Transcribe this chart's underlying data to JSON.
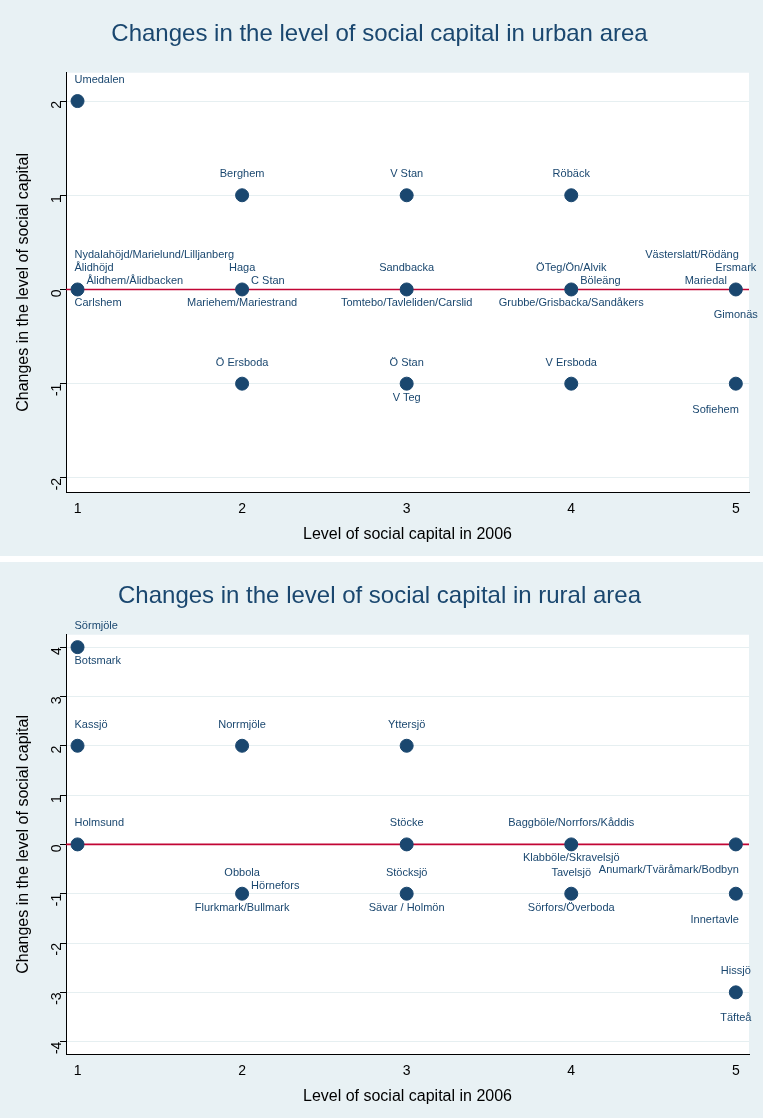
{
  "chart_data": [
    {
      "type": "scatter",
      "title": "Changes in the level of social capital in urban area",
      "xlabel": "Level of social capital in 2006",
      "ylabel": "Changes in the level of social capital",
      "series": [
        {
          "color": "#1a476f",
          "x": [
            1,
            2,
            3,
            4,
            1,
            2,
            3,
            4,
            5,
            2,
            3,
            4,
            5
          ],
          "values": [
            2,
            1,
            1,
            1,
            0,
            0,
            0,
            0,
            0,
            -1,
            -1,
            -1,
            -1
          ]
        }
      ],
      "xlim": [
        0.93,
        5.08
      ],
      "xticks": [
        1,
        2,
        3,
        4,
        5
      ],
      "ylim": [
        -2.15,
        2.3
      ],
      "yticks": [
        -2,
        -1,
        0,
        1,
        2
      ],
      "grid": "y",
      "legend": false,
      "marker": "circle",
      "ref_lines": [
        {
          "axis": "y",
          "value": 0,
          "color": "#c10534"
        }
      ],
      "annotations": [
        {
          "text": "Umedalen",
          "x": 1,
          "y": 2
        },
        {
          "text": "Berghem",
          "x": 2,
          "y": 1
        },
        {
          "text": "V Stan",
          "x": 3,
          "y": 1
        },
        {
          "text": "Röbäck",
          "x": 4,
          "y": 1
        },
        {
          "text": "Ålidhöjd",
          "x": 1,
          "y": 0
        },
        {
          "text": "Carlshem",
          "x": 1,
          "y": 0
        },
        {
          "text": "Ålidhem/Ålidbacken",
          "x": 1,
          "y": 0
        },
        {
          "text": "Nydalahöjd/Marielund/Lilljanberg",
          "x": 1,
          "y": 0
        },
        {
          "text": "Haga",
          "x": 2,
          "y": 0
        },
        {
          "text": "Mariehem/Mariestrand",
          "x": 2,
          "y": 0
        },
        {
          "text": "C Stan",
          "x": 2,
          "y": 0
        },
        {
          "text": "Sandbacka",
          "x": 3,
          "y": 0
        },
        {
          "text": "Tomtebo/Tavleliden/Carslid",
          "x": 3,
          "y": 0
        },
        {
          "text": "ÖTeg/Ön/Alvik",
          "x": 4,
          "y": 0
        },
        {
          "text": "Grubbe/Grisbacka/Sandåkers",
          "x": 4,
          "y": 0
        },
        {
          "text": "Böleäng",
          "x": 4,
          "y": 0
        },
        {
          "text": "Gimonäs",
          "x": 5,
          "y": 0
        },
        {
          "text": "Ersmark",
          "x": 5,
          "y": 0
        },
        {
          "text": "Mariedal",
          "x": 5,
          "y": 0
        },
        {
          "text": "Västerslatt/Rödäng",
          "x": 5,
          "y": 0
        },
        {
          "text": "Ö Ersboda",
          "x": 2,
          "y": -1
        },
        {
          "text": "Ö Stan",
          "x": 3,
          "y": -1
        },
        {
          "text": "V Teg",
          "x": 3,
          "y": -1
        },
        {
          "text": "V Ersboda",
          "x": 4,
          "y": -1
        },
        {
          "text": "Sofiehem",
          "x": 5,
          "y": -1
        }
      ]
    },
    {
      "type": "scatter",
      "title": "Changes in the level of social capital in rural area",
      "xlabel": "Level of social capital in 2006",
      "ylabel": "Changes in the level of social capital",
      "series": [
        {
          "color": "#1a476f",
          "x": [
            1,
            1,
            2,
            3,
            1,
            3,
            4,
            5,
            2,
            3,
            4,
            5,
            5
          ],
          "values": [
            4,
            2,
            2,
            2,
            0,
            0,
            0,
            0,
            -1,
            -1,
            -1,
            -1,
            -3
          ]
        }
      ],
      "xlim": [
        0.93,
        5.08
      ],
      "xticks": [
        1,
        2,
        3,
        4,
        5
      ],
      "ylim": [
        -4.25,
        4.25
      ],
      "yticks": [
        -4,
        -3,
        -2,
        -1,
        0,
        1,
        2,
        3,
        4
      ],
      "grid": "y",
      "legend": false,
      "marker": "circle",
      "ref_lines": [
        {
          "axis": "y",
          "value": 0,
          "color": "#c10534"
        }
      ],
      "annotations": [
        {
          "text": "Sörmjöle",
          "x": 1,
          "y": 4
        },
        {
          "text": "Botsmark",
          "x": 1,
          "y": 4
        },
        {
          "text": "Kassjö",
          "x": 1,
          "y": 2
        },
        {
          "text": "Norrmjöle",
          "x": 2,
          "y": 2
        },
        {
          "text": "Yttersjö",
          "x": 3,
          "y": 2
        },
        {
          "text": "Holmsund",
          "x": 1,
          "y": 0
        },
        {
          "text": "Stöcke",
          "x": 3,
          "y": 0
        },
        {
          "text": "Baggböle/Norrfors/Kåddis",
          "x": 4,
          "y": 0
        },
        {
          "text": "Klabböle/Skravelsjö",
          "x": 4,
          "y": 0
        },
        {
          "text": "Anumark/Tväråmark/Bodbyn",
          "x": 5,
          "y": 0
        },
        {
          "text": "Obbola",
          "x": 2,
          "y": -1
        },
        {
          "text": "Flurkmark/Bullmark",
          "x": 2,
          "y": -1
        },
        {
          "text": "Hörnefors",
          "x": 2,
          "y": -1
        },
        {
          "text": "Stöcksjö",
          "x": 3,
          "y": -1
        },
        {
          "text": "Sävar / Holmön",
          "x": 3,
          "y": -1
        },
        {
          "text": "Tavelsjö",
          "x": 4,
          "y": -1
        },
        {
          "text": "Sörfors/Överboda",
          "x": 4,
          "y": -1
        },
        {
          "text": "Innertavle",
          "x": 5,
          "y": -1
        },
        {
          "text": "Täfteå",
          "x": 5,
          "y": -3
        },
        {
          "text": "Hissjö",
          "x": 5,
          "y": -3
        }
      ]
    }
  ]
}
